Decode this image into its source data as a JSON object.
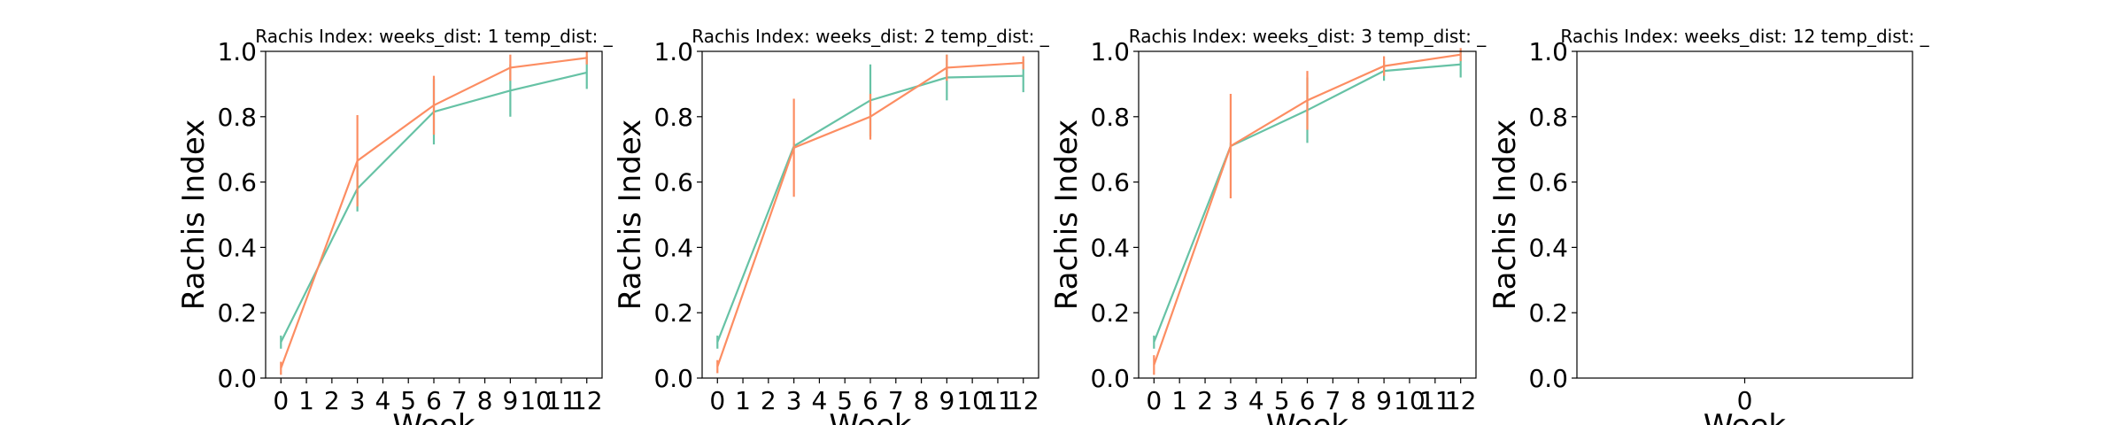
{
  "chart_data": [
    {
      "type": "line",
      "title": "Rachis Index:  weeks_dist: 1  temp_dist: _",
      "x_label": "Week",
      "y_label": "Rachis Index",
      "x": [
        0,
        3,
        6,
        9,
        12
      ],
      "xlim": [
        -0.6,
        12.6
      ],
      "xticks": [
        0,
        1,
        2,
        3,
        4,
        5,
        6,
        7,
        8,
        9,
        10,
        11,
        12
      ],
      "ylim": [
        0,
        1
      ],
      "yticks": [
        {
          "value": 0,
          "label": "0.0"
        },
        0.2,
        0.4,
        0.6,
        0.8,
        {
          "value": 1,
          "label": "1.0"
        }
      ],
      "series": [
        {
          "color": "#66c2a5",
          "values": [
            0.11,
            0.58,
            0.815,
            0.88,
            0.935
          ],
          "errors": [
            0.02,
            0.07,
            0.1,
            0.08,
            0.05
          ]
        },
        {
          "color": "#fc8d62",
          "values": [
            0.03,
            0.665,
            0.835,
            0.95,
            0.98
          ],
          "errors": [
            0.02,
            0.14,
            0.09,
            0.04,
            0.02
          ]
        }
      ]
    },
    {
      "type": "line",
      "title": "Rachis Index:  weeks_dist: 2  temp_dist: _",
      "x_label": "Week",
      "y_label": "Rachis Index",
      "x": [
        0,
        3,
        6,
        9,
        12
      ],
      "xlim": [
        -0.6,
        12.6
      ],
      "xticks": [
        0,
        1,
        2,
        3,
        4,
        5,
        6,
        7,
        8,
        9,
        10,
        11,
        12
      ],
      "ylim": [
        0,
        1
      ],
      "yticks": [
        {
          "value": 0,
          "label": "0.0"
        },
        0.2,
        0.4,
        0.6,
        0.8,
        {
          "value": 1,
          "label": "1.0"
        }
      ],
      "series": [
        {
          "color": "#66c2a5",
          "values": [
            0.11,
            0.71,
            0.85,
            0.92,
            0.925
          ],
          "errors": [
            0.02,
            0.01,
            0.11,
            0.07,
            0.05
          ]
        },
        {
          "color": "#fc8d62",
          "values": [
            0.035,
            0.705,
            0.8,
            0.95,
            0.965
          ],
          "errors": [
            0.02,
            0.15,
            0.07,
            0.04,
            0.02
          ]
        }
      ]
    },
    {
      "type": "line",
      "title": "Rachis Index:  weeks_dist: 3  temp_dist: _",
      "x_label": "Week",
      "y_label": "Rachis Index",
      "x": [
        0,
        3,
        6,
        9,
        12
      ],
      "xlim": [
        -0.6,
        12.6
      ],
      "xticks": [
        0,
        1,
        2,
        3,
        4,
        5,
        6,
        7,
        8,
        9,
        10,
        11,
        12
      ],
      "ylim": [
        0,
        1
      ],
      "yticks": [
        {
          "value": 0,
          "label": "0.0"
        },
        0.2,
        0.4,
        0.6,
        0.8,
        {
          "value": 1,
          "label": "1.0"
        }
      ],
      "series": [
        {
          "color": "#66c2a5",
          "values": [
            0.11,
            0.71,
            0.82,
            0.94,
            0.96
          ],
          "errors": [
            0.02,
            0.01,
            0.1,
            0.03,
            0.04
          ]
        },
        {
          "color": "#fc8d62",
          "values": [
            0.04,
            0.71,
            0.85,
            0.955,
            0.99
          ],
          "errors": [
            0.03,
            0.16,
            0.09,
            0.03,
            0.02
          ]
        }
      ]
    },
    {
      "type": "line",
      "title": "Rachis Index:  weeks_dist: 12  temp_dist: _",
      "x_label": "Week",
      "y_label": "Rachis Index",
      "x": [],
      "xlim": [
        -1,
        1
      ],
      "xticks": [
        0
      ],
      "ylim": [
        0,
        1
      ],
      "yticks": [
        {
          "value": 0,
          "label": "0.0"
        },
        0.2,
        0.4,
        0.6,
        0.8,
        {
          "value": 1,
          "label": "1.0"
        }
      ],
      "series": []
    }
  ]
}
